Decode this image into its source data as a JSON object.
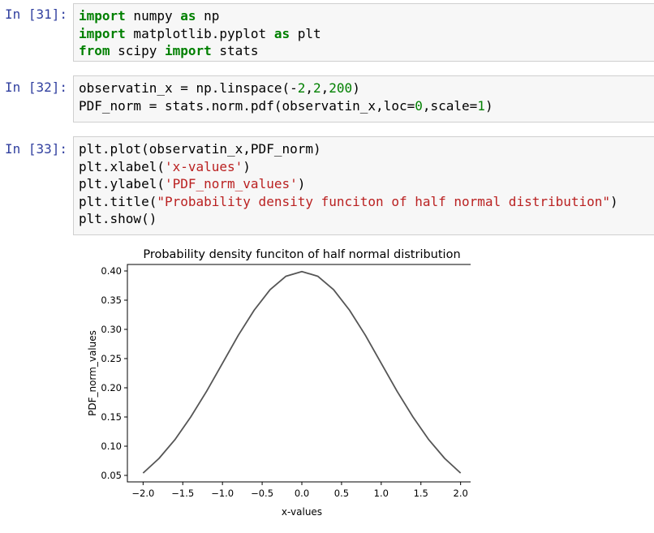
{
  "cells": [
    {
      "prompt": "In [31]:",
      "lines": [
        [
          {
            "t": "import",
            "c": "kw"
          },
          {
            "t": " numpy ",
            "c": ""
          },
          {
            "t": "as",
            "c": "kw"
          },
          {
            "t": " np",
            "c": ""
          }
        ],
        [
          {
            "t": "import",
            "c": "kw"
          },
          {
            "t": " matplotlib.pyplot ",
            "c": ""
          },
          {
            "t": "as",
            "c": "kw"
          },
          {
            "t": " plt",
            "c": ""
          }
        ],
        [
          {
            "t": "from",
            "c": "kw"
          },
          {
            "t": " scipy ",
            "c": ""
          },
          {
            "t": "import",
            "c": "kw"
          },
          {
            "t": " stats",
            "c": ""
          }
        ]
      ]
    },
    {
      "prompt": "In [32]:",
      "lines": [
        [
          {
            "t": "observatin_x = np.linspace(-",
            "c": ""
          },
          {
            "t": "2",
            "c": "num"
          },
          {
            "t": ",",
            "c": ""
          },
          {
            "t": "2",
            "c": "num"
          },
          {
            "t": ",",
            "c": ""
          },
          {
            "t": "200",
            "c": "num"
          },
          {
            "t": ")",
            "c": ""
          }
        ],
        [
          {
            "t": "PDF_norm = stats.norm.pdf(observatin_x,loc=",
            "c": ""
          },
          {
            "t": "0",
            "c": "num"
          },
          {
            "t": ",scale=",
            "c": ""
          },
          {
            "t": "1",
            "c": "num"
          },
          {
            "t": ")",
            "c": ""
          }
        ]
      ]
    },
    {
      "prompt": "In [33]:",
      "lines": [
        [
          {
            "t": "plt.plot(observatin_x,PDF_norm)",
            "c": ""
          }
        ],
        [
          {
            "t": "plt.xlabel(",
            "c": ""
          },
          {
            "t": "'x-values'",
            "c": "str"
          },
          {
            "t": ")",
            "c": ""
          }
        ],
        [
          {
            "t": "plt.ylabel(",
            "c": ""
          },
          {
            "t": "'PDF_norm_values'",
            "c": "str"
          },
          {
            "t": ")",
            "c": ""
          }
        ],
        [
          {
            "t": "plt.title(",
            "c": ""
          },
          {
            "t": "\"Probability density funciton of half normal distribution\"",
            "c": "str"
          },
          {
            "t": ")",
            "c": ""
          }
        ],
        [
          {
            "t": "plt.show()",
            "c": ""
          }
        ]
      ]
    }
  ],
  "chart_data": {
    "type": "line",
    "title": "Probability density funciton of half normal distribution",
    "xlabel": "x-values",
    "ylabel": "PDF_norm_values",
    "xlim": [
      -2.0,
      2.0
    ],
    "ylim": [
      0.05,
      0.4
    ],
    "x_ticks": [
      "-2.0",
      "-1.5",
      "-1.0",
      "-0.5",
      "0.0",
      "0.5",
      "1.0",
      "1.5",
      "2.0"
    ],
    "y_ticks": [
      "0.05",
      "0.10",
      "0.15",
      "0.20",
      "0.25",
      "0.30",
      "0.35",
      "0.40"
    ],
    "series": [
      {
        "color": "#1f77b4",
        "x": [
          -2.0,
          -1.8,
          -1.6,
          -1.4,
          -1.2,
          -1.0,
          -0.8,
          -0.6,
          -0.4,
          -0.2,
          0.0,
          0.2,
          0.4,
          0.6,
          0.8,
          1.0,
          1.2,
          1.4,
          1.6,
          1.8,
          2.0
        ],
        "y": [
          0.054,
          0.079,
          0.111,
          0.15,
          0.194,
          0.242,
          0.29,
          0.333,
          0.368,
          0.391,
          0.399,
          0.391,
          0.368,
          0.333,
          0.29,
          0.242,
          0.194,
          0.15,
          0.111,
          0.079,
          0.054
        ]
      }
    ]
  }
}
